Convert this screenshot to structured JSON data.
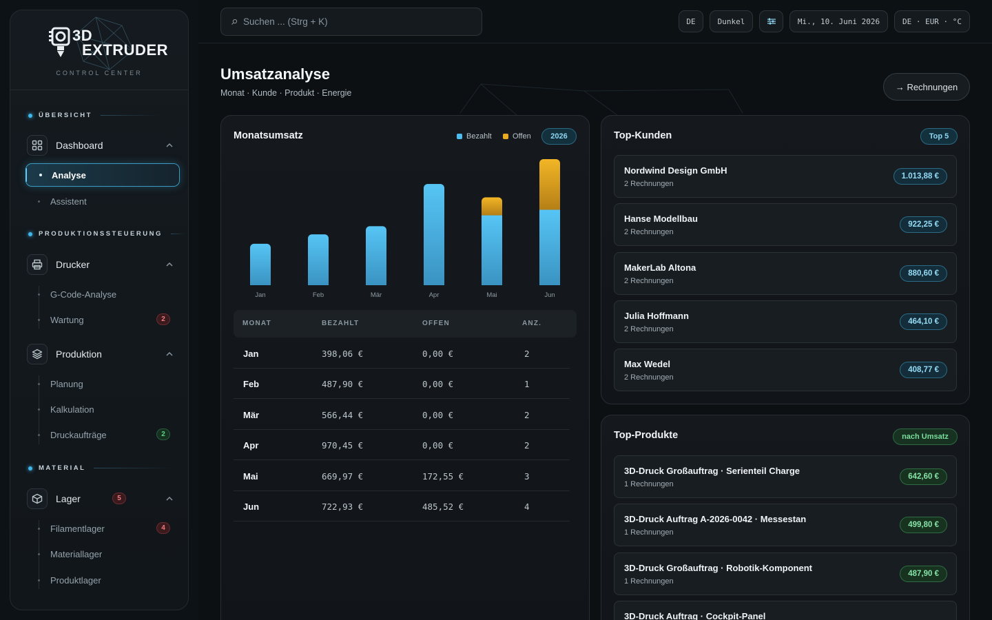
{
  "sidebar": {
    "logo_line1": "3D",
    "logo_line2": "EXTRUDER",
    "logo_sub": "CONTROL CENTER",
    "sections": [
      "ÜBERSICHT",
      "PRODUKTIONSSTEUERUNG",
      "MATERIAL"
    ],
    "dashboard": {
      "label": "Dashboard",
      "items": [
        "Analyse",
        "Assistent"
      ]
    },
    "drucker": {
      "label": "Drucker",
      "items": [
        "G-Code-Analyse",
        "Wartung"
      ],
      "wartung_badge": "2"
    },
    "produktion": {
      "label": "Produktion",
      "items": [
        "Planung",
        "Kalkulation",
        "Druckaufträge"
      ],
      "auftraege_badge": "2"
    },
    "lager": {
      "label": "Lager",
      "badge": "5",
      "items": [
        "Filamentlager",
        "Materiallager",
        "Produktlager"
      ],
      "filament_badge": "4"
    }
  },
  "topbar": {
    "search_placeholder": "Suchen ... (Strg + K)",
    "lang": "DE",
    "theme": "Dunkel",
    "date": "Mi., 10. Juni 2026",
    "locale": "DE · EUR · °C"
  },
  "page": {
    "title": "Umsatzanalyse",
    "subtitle": "Monat · Kunde · Produkt · Energie",
    "invoices_button": "→ Rechnungen"
  },
  "monthly": {
    "title": "Monatsumsatz",
    "legend_paid": "Bezahlt",
    "legend_open": "Offen",
    "year": "2026",
    "columns": [
      "MONAT",
      "BEZAHLT",
      "OFFEN",
      "ANZ."
    ],
    "rows": [
      {
        "month": "Jan",
        "paid": "398,06 €",
        "open": "0,00 €",
        "count": "2"
      },
      {
        "month": "Feb",
        "paid": "487,90 €",
        "open": "0,00 €",
        "count": "1"
      },
      {
        "month": "Mär",
        "paid": "566,44 €",
        "open": "0,00 €",
        "count": "2"
      },
      {
        "month": "Apr",
        "paid": "970,45 €",
        "open": "0,00 €",
        "count": "2"
      },
      {
        "month": "Mai",
        "paid": "669,97 €",
        "open": "172,55 €",
        "count": "3"
      },
      {
        "month": "Jun",
        "paid": "722,93 €",
        "open": "485,52 €",
        "count": "4"
      }
    ]
  },
  "chart_data": {
    "type": "bar",
    "stacked": true,
    "categories": [
      "Jan",
      "Feb",
      "Mär",
      "Apr",
      "Mai",
      "Jun"
    ],
    "series": [
      {
        "name": "Bezahlt",
        "values": [
          398.06,
          487.9,
          566.44,
          970.45,
          669.97,
          722.93
        ],
        "color": "#4cbdf0"
      },
      {
        "name": "Offen",
        "values": [
          0,
          0,
          0,
          0,
          172.55,
          485.52
        ],
        "color": "#e8a923"
      }
    ],
    "ymax": 1208.45,
    "grid": false,
    "legend": "top-right"
  },
  "customers": {
    "title": "Top-Kunden",
    "badge": "Top 5",
    "items": [
      {
        "name": "Nordwind Design GmbH",
        "sub": "2 Rechnungen",
        "value": "1.013,88 €"
      },
      {
        "name": "Hanse Modellbau",
        "sub": "2 Rechnungen",
        "value": "922,25 €"
      },
      {
        "name": "MakerLab Altona",
        "sub": "2 Rechnungen",
        "value": "880,60 €"
      },
      {
        "name": "Julia Hoffmann",
        "sub": "2 Rechnungen",
        "value": "464,10 €"
      },
      {
        "name": "Max Wedel",
        "sub": "2 Rechnungen",
        "value": "408,77 €"
      }
    ]
  },
  "products": {
    "title": "Top-Produkte",
    "badge": "nach Umsatz",
    "items": [
      {
        "name": "3D-Druck Großauftrag · Serienteil Charge",
        "sub": "1 Rechnungen",
        "value": "642,60 €"
      },
      {
        "name": "3D-Druck Auftrag A-2026-0042 · Messestan",
        "sub": "1 Rechnungen",
        "value": "499,80 €"
      },
      {
        "name": "3D-Druck Großauftrag · Robotik-Komponent",
        "sub": "1 Rechnungen",
        "value": "487,90 €"
      },
      {
        "name": "3D-Druck Auftrag · Cockpit-Panel",
        "sub": "",
        "value": ""
      }
    ]
  },
  "colors": {
    "accent": "#3fb6ea",
    "paid": "#4cbdf0",
    "open": "#e8a923",
    "background": "#0b0f12"
  }
}
